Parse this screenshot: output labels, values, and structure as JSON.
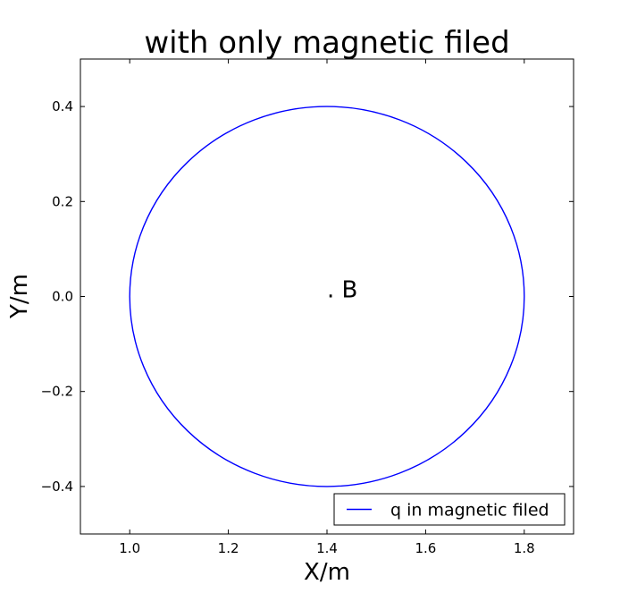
{
  "chart_data": {
    "type": "line",
    "title": "with only magnetic filed",
    "xlabel": "X/m",
    "ylabel": "Y/m",
    "xlim": [
      0.9,
      1.9
    ],
    "ylim": [
      -0.5,
      0.5
    ],
    "x_ticks": [
      1.0,
      1.2,
      1.4,
      1.6,
      1.8
    ],
    "x_tick_labels": [
      "1.0",
      "1.2",
      "1.4",
      "1.6",
      "1.8"
    ],
    "y_ticks": [
      -0.4,
      -0.2,
      0.0,
      0.2,
      0.4
    ],
    "y_tick_labels": [
      "−0.4",
      "−0.2",
      "0.0",
      "0.2",
      "0.4"
    ],
    "grid": false,
    "legend_placement": "lower-right",
    "series": [
      {
        "name": "q in magnetic filed",
        "color": "#0000ff",
        "shape": "circle",
        "center": [
          1.4,
          0.0
        ],
        "radius": 0.4
      }
    ],
    "annotations": [
      {
        "text": ". B",
        "x": 1.4,
        "y": 0.0
      }
    ]
  }
}
